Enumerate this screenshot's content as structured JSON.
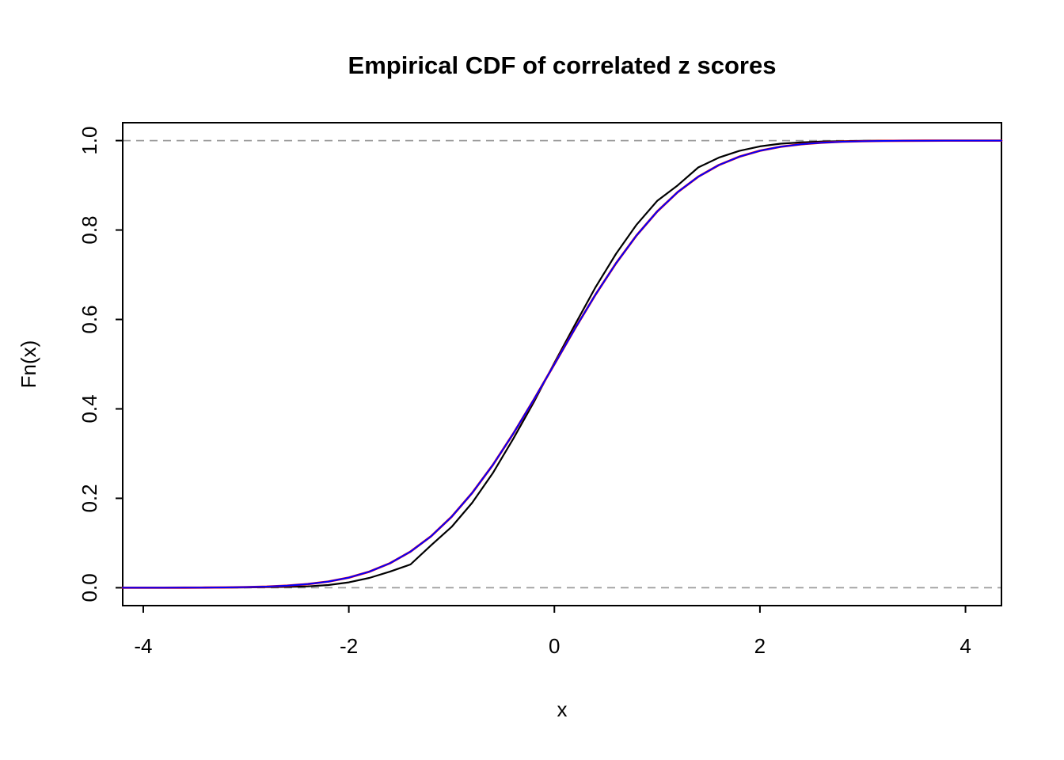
{
  "chart_data": {
    "type": "line",
    "title": "Empirical CDF of correlated z scores",
    "xlabel": "x",
    "ylabel": "Fn(x)",
    "xlim": [
      -4.2,
      4.35
    ],
    "ylim": [
      -0.04,
      1.04
    ],
    "x_ticks": [
      -4,
      -2,
      0,
      2,
      4
    ],
    "y_ticks": [
      0.0,
      0.2,
      0.4,
      0.6,
      0.8,
      1.0
    ],
    "grid": false,
    "legend": "none",
    "reference_lines": {
      "y": [
        0.0,
        1.0
      ],
      "style": "dashed",
      "color": "#9b9b9b"
    },
    "x": [
      -4.2,
      -4,
      -3.8,
      -3.6,
      -3.4,
      -3.2,
      -3,
      -2.8,
      -2.6,
      -2.4,
      -2.2,
      -2,
      -1.8,
      -1.6,
      -1.4,
      -1.2,
      -1,
      -0.8,
      -0.6,
      -0.4,
      -0.2,
      0,
      0.2,
      0.4,
      0.6,
      0.8,
      1,
      1.2,
      1.4,
      1.6,
      1.8,
      2,
      2.2,
      2.4,
      2.6,
      2.8,
      3,
      3.2,
      3.4,
      3.6,
      3.8,
      4,
      4.2,
      4.35
    ],
    "series": [
      {
        "name": "empirical-ecdf",
        "color": "#000000",
        "width": 2.2,
        "values": [
          0,
          0,
          0,
          0,
          0.0002,
          0.0004,
          0.0008,
          0.0012,
          0.002,
          0.003,
          0.006,
          0.012,
          0.022,
          0.036,
          0.052,
          0.095,
          0.136,
          0.19,
          0.256,
          0.333,
          0.415,
          0.503,
          0.588,
          0.672,
          0.747,
          0.812,
          0.865,
          0.9,
          0.94,
          0.962,
          0.977,
          0.987,
          0.993,
          0.996,
          0.998,
          0.9988,
          0.9995,
          0.9998,
          1,
          1,
          1,
          1,
          1,
          1
        ]
      },
      {
        "name": "normal-cdf-red",
        "color": "#ff0000",
        "width": 2.8,
        "values": [
          1e-05,
          3e-05,
          7e-05,
          0.00016,
          0.00034,
          0.00069,
          0.00135,
          0.00256,
          0.00466,
          0.0082,
          0.0139,
          0.02275,
          0.03593,
          0.0548,
          0.08076,
          0.11507,
          0.15866,
          0.21186,
          0.27425,
          0.34458,
          0.42074,
          0.5,
          0.57926,
          0.65542,
          0.72575,
          0.78814,
          0.84134,
          0.88493,
          0.91924,
          0.9452,
          0.96407,
          0.97725,
          0.9861,
          0.9918,
          0.99534,
          0.99744,
          0.99865,
          0.99931,
          0.99966,
          0.99984,
          0.99993,
          0.99997,
          0.99999,
          1
        ]
      },
      {
        "name": "normal-cdf-blue",
        "color": "#0000ff",
        "width": 2.0,
        "values": [
          1e-05,
          3e-05,
          7e-05,
          0.00016,
          0.00034,
          0.00069,
          0.00135,
          0.00256,
          0.00466,
          0.0082,
          0.0139,
          0.02275,
          0.03593,
          0.0548,
          0.08076,
          0.11507,
          0.15866,
          0.21186,
          0.27425,
          0.34458,
          0.42074,
          0.5,
          0.57926,
          0.65542,
          0.72575,
          0.78814,
          0.84134,
          0.88493,
          0.91924,
          0.9452,
          0.96407,
          0.97725,
          0.9861,
          0.9918,
          0.99534,
          0.99744,
          0.99865,
          0.99931,
          0.99966,
          0.99984,
          0.99993,
          0.99997,
          0.99999,
          1
        ]
      }
    ]
  }
}
